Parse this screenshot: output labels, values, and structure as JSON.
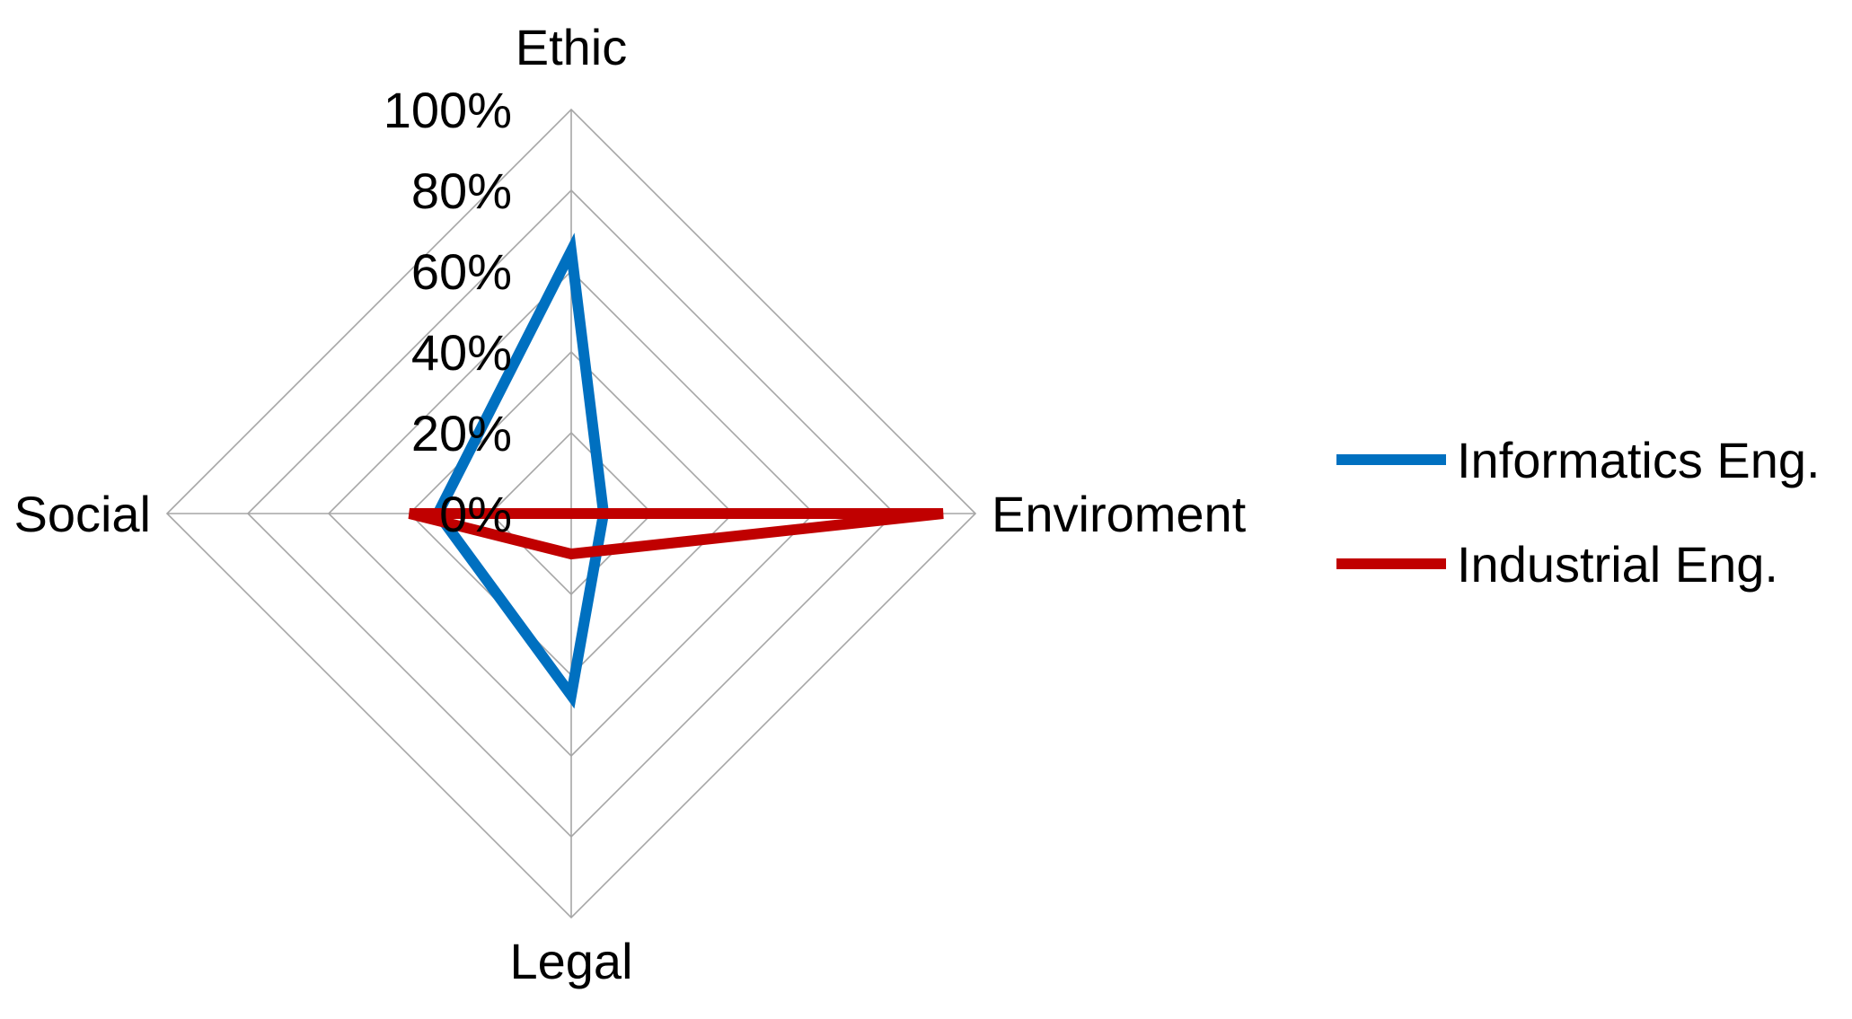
{
  "chart_data": {
    "type": "radar",
    "axes": [
      "Ethic",
      "Enviroment",
      "Legal",
      "Social"
    ],
    "r_ticks": [
      "0%",
      "20%",
      "40%",
      "60%",
      "80%",
      "100%"
    ],
    "r_range": [
      0,
      100
    ],
    "grid": true,
    "legend_position": "right",
    "series": [
      {
        "name": "Informatics Eng.",
        "color": "#0070c0",
        "values": [
          65,
          8,
          45,
          33
        ]
      },
      {
        "name": "Industrial Eng.",
        "color": "#c00000",
        "values": [
          0,
          92,
          10,
          40
        ]
      }
    ]
  }
}
